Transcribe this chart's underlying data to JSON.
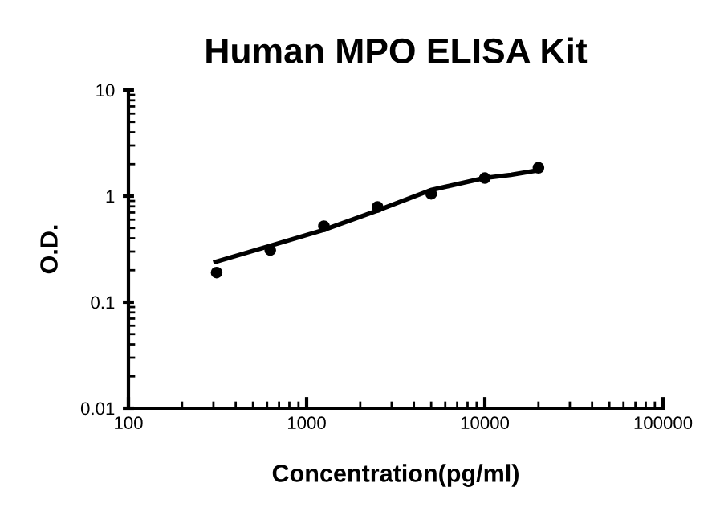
{
  "chart_data": {
    "type": "scatter",
    "title": "Human MPO ELISA Kit",
    "xlabel": "Concentration(pg/ml)",
    "ylabel": "O.D.",
    "log": "xy",
    "xlim": [
      100,
      100000
    ],
    "xticks": [
      100,
      1000,
      10000,
      100000
    ],
    "ylim": [
      0.01,
      10
    ],
    "yticks": [
      0.01,
      0.1,
      1,
      10
    ],
    "grid": false,
    "legend": false,
    "series": [
      {
        "color": "#000000",
        "marker": "circle",
        "x": [
          312.5,
          625,
          1250,
          2500,
          5000,
          10000,
          20000
        ],
        "values": [
          0.19,
          0.31,
          0.52,
          0.79,
          1.05,
          1.48,
          1.85
        ]
      },
      {
        "type": "line",
        "color": "#000000",
        "marker": "none",
        "line_style": "solid",
        "x": [
          308,
          624,
          1246,
          2489,
          4980,
          9930,
          14000,
          19800
        ],
        "values": [
          0.24,
          0.34,
          0.48,
          0.73,
          1.14,
          1.48,
          1.59,
          1.75
        ]
      }
    ]
  }
}
